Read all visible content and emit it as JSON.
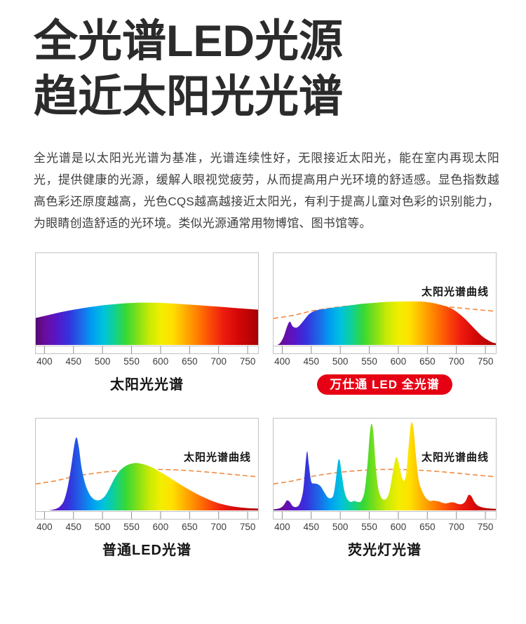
{
  "header": {
    "title_line1": "全光谱LED光源",
    "title_line2": "趋近太阳光光谱",
    "intro": "全光谱是以太阳光光谱为基准，光谱连续性好，无限接近太阳光，能在室内再现太阳光，提供健康的光源，缓解人眼视觉疲劳，从而提高用户光环境的舒适感。显色指数越高色彩还原度越高，光色CQS越高越接近太阳光，有利于提高儿童对色彩的识别能力，为眼睛创造舒适的光环境。类似光源通常用物博馆、图书馆等。"
  },
  "colors": {
    "accent_red": "#e60013",
    "sun_curve_dash": "#f18a41",
    "chart_border": "#c3c3c3",
    "tick_line": "#8f8f8f",
    "tick_label": "#3c3c3c",
    "overlay_label": "#141414",
    "title_text": "#2b2b2b",
    "intro_text": "#3e3e3e",
    "spectrum_stops": [
      {
        "wl": 385,
        "color": "#4f0a6e"
      },
      {
        "wl": 403,
        "color": "#6b0da1"
      },
      {
        "wl": 423,
        "color": "#5517c9"
      },
      {
        "wl": 443,
        "color": "#3433dd"
      },
      {
        "wl": 463,
        "color": "#1e66e8"
      },
      {
        "wl": 483,
        "color": "#009ef2"
      },
      {
        "wl": 502,
        "color": "#00c2dd"
      },
      {
        "wl": 520,
        "color": "#0fd096"
      },
      {
        "wl": 540,
        "color": "#36d836"
      },
      {
        "wl": 560,
        "color": "#7fdf18"
      },
      {
        "wl": 580,
        "color": "#c7ea06"
      },
      {
        "wl": 600,
        "color": "#f2ee00"
      },
      {
        "wl": 620,
        "color": "#ffe000"
      },
      {
        "wl": 642,
        "color": "#ffae00"
      },
      {
        "wl": 664,
        "color": "#ff7b00"
      },
      {
        "wl": 686,
        "color": "#fa4708"
      },
      {
        "wl": 708,
        "color": "#ed1b0e"
      },
      {
        "wl": 730,
        "color": "#d60808"
      },
      {
        "wl": 750,
        "color": "#bd0404"
      },
      {
        "wl": 768,
        "color": "#a50202"
      }
    ]
  },
  "chart_data": [
    {
      "type": "area",
      "id": "sunlight-spectrum",
      "caption": "太阳光光谱",
      "caption_style": "plain",
      "overlay_label": null,
      "x_range": [
        385,
        768
      ],
      "x_ticks": [
        400,
        450,
        500,
        550,
        600,
        650,
        700,
        750
      ],
      "ylim": [
        0,
        1
      ],
      "spectrum_points": [
        [
          385,
          0.3
        ],
        [
          400,
          0.322
        ],
        [
          420,
          0.352
        ],
        [
          440,
          0.378
        ],
        [
          460,
          0.4
        ],
        [
          480,
          0.42
        ],
        [
          500,
          0.437
        ],
        [
          520,
          0.45
        ],
        [
          540,
          0.46
        ],
        [
          560,
          0.466
        ],
        [
          580,
          0.467
        ],
        [
          600,
          0.464
        ],
        [
          620,
          0.457
        ],
        [
          640,
          0.449
        ],
        [
          660,
          0.441
        ],
        [
          680,
          0.432
        ],
        [
          700,
          0.423
        ],
        [
          720,
          0.413
        ],
        [
          740,
          0.403
        ],
        [
          755,
          0.396
        ],
        [
          768,
          0.39
        ]
      ],
      "sun_curve_points": null
    },
    {
      "type": "area",
      "id": "full-spectrum-led",
      "caption": "万仕通 LED 全光谱",
      "caption_style": "red-pill",
      "overlay_label": "太阳光谱曲线",
      "x_range": [
        385,
        768
      ],
      "x_ticks": [
        400,
        450,
        500,
        550,
        600,
        650,
        700,
        750
      ],
      "ylim": [
        0,
        1
      ],
      "spectrum_points": [
        [
          386,
          0.0
        ],
        [
          395,
          0.02
        ],
        [
          402,
          0.09
        ],
        [
          408,
          0.2
        ],
        [
          413,
          0.26
        ],
        [
          418,
          0.21
        ],
        [
          424,
          0.195
        ],
        [
          430,
          0.22
        ],
        [
          438,
          0.28
        ],
        [
          446,
          0.34
        ],
        [
          452,
          0.365
        ],
        [
          460,
          0.385
        ],
        [
          470,
          0.395
        ],
        [
          485,
          0.41
        ],
        [
          500,
          0.422
        ],
        [
          520,
          0.44
        ],
        [
          540,
          0.455
        ],
        [
          560,
          0.465
        ],
        [
          580,
          0.474
        ],
        [
          600,
          0.478
        ],
        [
          620,
          0.48
        ],
        [
          640,
          0.478
        ],
        [
          655,
          0.468
        ],
        [
          670,
          0.448
        ],
        [
          685,
          0.42
        ],
        [
          695,
          0.39
        ],
        [
          705,
          0.345
        ],
        [
          715,
          0.29
        ],
        [
          725,
          0.225
        ],
        [
          735,
          0.16
        ],
        [
          745,
          0.1
        ],
        [
          755,
          0.058
        ],
        [
          762,
          0.035
        ],
        [
          768,
          0.025
        ]
      ],
      "sun_curve_points": [
        [
          385,
          0.295
        ],
        [
          420,
          0.33
        ],
        [
          450,
          0.375
        ],
        [
          480,
          0.405
        ],
        [
          510,
          0.428
        ],
        [
          540,
          0.443
        ],
        [
          570,
          0.452
        ],
        [
          600,
          0.452
        ],
        [
          630,
          0.446
        ],
        [
          660,
          0.434
        ],
        [
          690,
          0.418
        ],
        [
          720,
          0.4
        ],
        [
          745,
          0.385
        ],
        [
          768,
          0.372
        ]
      ]
    },
    {
      "type": "area",
      "id": "ordinary-led",
      "caption": "普通LED光谱",
      "caption_style": "plain",
      "overlay_label": "太阳光谱曲线",
      "x_range": [
        385,
        768
      ],
      "x_ticks": [
        400,
        450,
        500,
        550,
        600,
        650,
        700,
        750
      ],
      "ylim": [
        0,
        1
      ],
      "spectrum_points": [
        [
          385,
          0.004
        ],
        [
          400,
          0.005
        ],
        [
          412,
          0.012
        ],
        [
          422,
          0.03
        ],
        [
          428,
          0.06
        ],
        [
          434,
          0.12
        ],
        [
          440,
          0.26
        ],
        [
          446,
          0.48
        ],
        [
          451,
          0.7
        ],
        [
          455,
          0.8
        ],
        [
          459,
          0.7
        ],
        [
          464,
          0.47
        ],
        [
          470,
          0.3
        ],
        [
          477,
          0.19
        ],
        [
          484,
          0.135
        ],
        [
          490,
          0.118
        ],
        [
          497,
          0.125
        ],
        [
          505,
          0.17
        ],
        [
          513,
          0.26
        ],
        [
          521,
          0.36
        ],
        [
          530,
          0.44
        ],
        [
          540,
          0.49
        ],
        [
          550,
          0.515
        ],
        [
          558,
          0.522
        ],
        [
          566,
          0.515
        ],
        [
          575,
          0.5
        ],
        [
          585,
          0.475
        ],
        [
          595,
          0.44
        ],
        [
          605,
          0.405
        ],
        [
          615,
          0.365
        ],
        [
          625,
          0.325
        ],
        [
          635,
          0.285
        ],
        [
          645,
          0.248
        ],
        [
          655,
          0.212
        ],
        [
          665,
          0.178
        ],
        [
          675,
          0.148
        ],
        [
          685,
          0.12
        ],
        [
          695,
          0.096
        ],
        [
          705,
          0.077
        ],
        [
          715,
          0.062
        ],
        [
          725,
          0.05
        ],
        [
          735,
          0.042
        ],
        [
          745,
          0.035
        ],
        [
          755,
          0.03
        ],
        [
          768,
          0.027
        ]
      ],
      "sun_curve_points": [
        [
          385,
          0.295
        ],
        [
          420,
          0.33
        ],
        [
          450,
          0.375
        ],
        [
          480,
          0.405
        ],
        [
          510,
          0.428
        ],
        [
          540,
          0.443
        ],
        [
          570,
          0.452
        ],
        [
          600,
          0.452
        ],
        [
          630,
          0.446
        ],
        [
          660,
          0.434
        ],
        [
          690,
          0.418
        ],
        [
          720,
          0.4
        ],
        [
          745,
          0.385
        ],
        [
          768,
          0.372
        ]
      ]
    },
    {
      "type": "area",
      "id": "fluorescent-lamp",
      "caption": "荧光灯光谱",
      "caption_style": "plain",
      "overlay_label": "太阳光谱曲线",
      "x_range": [
        385,
        768
      ],
      "x_ticks": [
        400,
        450,
        500,
        550,
        600,
        650,
        700,
        750
      ],
      "ylim": [
        0,
        1
      ],
      "spectrum_points": [
        [
          385,
          0.018
        ],
        [
          395,
          0.03
        ],
        [
          402,
          0.06
        ],
        [
          408,
          0.115
        ],
        [
          413,
          0.1
        ],
        [
          418,
          0.055
        ],
        [
          424,
          0.045
        ],
        [
          430,
          0.08
        ],
        [
          436,
          0.22
        ],
        [
          440,
          0.5
        ],
        [
          443,
          0.648
        ],
        [
          446,
          0.5
        ],
        [
          450,
          0.32
        ],
        [
          455,
          0.3
        ],
        [
          460,
          0.295
        ],
        [
          466,
          0.27
        ],
        [
          472,
          0.21
        ],
        [
          478,
          0.152
        ],
        [
          483,
          0.14
        ],
        [
          488,
          0.17
        ],
        [
          492,
          0.32
        ],
        [
          496,
          0.53
        ],
        [
          499,
          0.55
        ],
        [
          503,
          0.38
        ],
        [
          507,
          0.22
        ],
        [
          512,
          0.13
        ],
        [
          518,
          0.1
        ],
        [
          524,
          0.11
        ],
        [
          530,
          0.1
        ],
        [
          536,
          0.11
        ],
        [
          542,
          0.22
        ],
        [
          547,
          0.52
        ],
        [
          551,
          0.85
        ],
        [
          554,
          0.947
        ],
        [
          557,
          0.85
        ],
        [
          561,
          0.5
        ],
        [
          565,
          0.26
        ],
        [
          570,
          0.155
        ],
        [
          575,
          0.125
        ],
        [
          580,
          0.14
        ],
        [
          585,
          0.22
        ],
        [
          590,
          0.4
        ],
        [
          595,
          0.565
        ],
        [
          598,
          0.576
        ],
        [
          602,
          0.48
        ],
        [
          606,
          0.37
        ],
        [
          610,
          0.33
        ],
        [
          614,
          0.42
        ],
        [
          618,
          0.72
        ],
        [
          622,
          0.952
        ],
        [
          626,
          0.9
        ],
        [
          630,
          0.62
        ],
        [
          635,
          0.34
        ],
        [
          640,
          0.235
        ],
        [
          645,
          0.165
        ],
        [
          650,
          0.126
        ],
        [
          655,
          0.11
        ],
        [
          660,
          0.115
        ],
        [
          665,
          0.11
        ],
        [
          670,
          0.105
        ],
        [
          676,
          0.09
        ],
        [
          681,
          0.084
        ],
        [
          686,
          0.088
        ],
        [
          691,
          0.096
        ],
        [
          696,
          0.093
        ],
        [
          701,
          0.082
        ],
        [
          706,
          0.074
        ],
        [
          711,
          0.08
        ],
        [
          716,
          0.11
        ],
        [
          721,
          0.175
        ],
        [
          726,
          0.16
        ],
        [
          731,
          0.1
        ],
        [
          737,
          0.06
        ],
        [
          744,
          0.042
        ],
        [
          752,
          0.032
        ],
        [
          760,
          0.027
        ],
        [
          768,
          0.025
        ]
      ],
      "sun_curve_points": [
        [
          385,
          0.295
        ],
        [
          420,
          0.33
        ],
        [
          450,
          0.375
        ],
        [
          480,
          0.405
        ],
        [
          510,
          0.428
        ],
        [
          540,
          0.443
        ],
        [
          570,
          0.452
        ],
        [
          600,
          0.452
        ],
        [
          630,
          0.446
        ],
        [
          660,
          0.434
        ],
        [
          690,
          0.418
        ],
        [
          720,
          0.4
        ],
        [
          745,
          0.385
        ],
        [
          768,
          0.372
        ]
      ]
    }
  ]
}
